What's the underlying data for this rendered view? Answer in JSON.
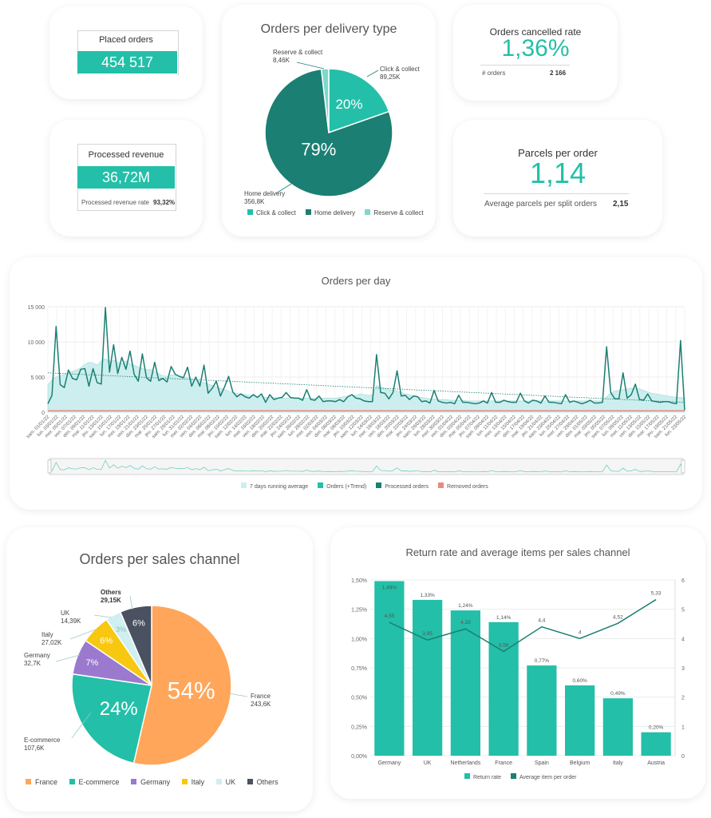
{
  "kpi_placed": {
    "label": "Placed orders",
    "value": "454 517"
  },
  "kpi_revenue": {
    "label": "Processed revenue",
    "value": "36,72M",
    "rate_label": "Processed revenue rate",
    "rate_value": "93,32%"
  },
  "kpi_cancel": {
    "label": "Orders cancelled rate",
    "value": "1,36%",
    "sub_label": "# orders",
    "sub_value": "2 166"
  },
  "kpi_parcels": {
    "label": "Parcels per order",
    "value": "1,14",
    "sub_label": "Average parcels per split orders",
    "sub_value": "2,15"
  },
  "colors": {
    "teal": "#23bfa8",
    "dark_teal": "#1b7f73",
    "light_teal": "#cdeeee",
    "orange": "#ffa65a",
    "purple": "#9a79cf",
    "yellow": "#f7c80f",
    "light_blue": "#cfeff0",
    "slate": "#4a5161",
    "red": "#e88a80"
  },
  "chart_data": [
    {
      "id": "delivery",
      "type": "pie",
      "title": "Orders per delivery type",
      "slices": [
        {
          "label": "Click & collect",
          "value": 89.25,
          "display": "89,25K",
          "pct": "20%",
          "color": "#23bfa8"
        },
        {
          "label": "Home delivery",
          "value": 356.8,
          "display": "356,8K",
          "pct": "79%",
          "color": "#1b7f73"
        },
        {
          "label": "Reserve & collect",
          "value": 8.46,
          "display": "8,46K",
          "pct": "",
          "color": "#7dd8cd"
        }
      ],
      "legend": [
        "Click & collect",
        "Home delivery",
        "Reserve & collect"
      ],
      "legend_position": "bottom"
    },
    {
      "id": "orders_day",
      "type": "line",
      "title": "Orders per day",
      "y_ticks": [
        "15 000",
        "10 000",
        "5 000",
        "0"
      ],
      "ylim": [
        0,
        15000
      ],
      "x_labels": [
        "sam. 01/01/22",
        "lun. 03/01/22",
        "mer. 05/01/22",
        "ven. 07/01/22",
        "dim. 09/01/22",
        "mar. 11/01/22",
        "jeu. 13/01/22",
        "sam. 15/01/22",
        "lun. 17/01/22",
        "mer. 19/01/22",
        "ven. 21/01/22",
        "dim. 23/01/22",
        "mar. 25/01/22",
        "jeu. 27/01/22",
        "sam. 29/01/22",
        "lun. 31/01/22",
        "mer. 02/02/22",
        "ven. 04/02/22",
        "dim. 06/02/22",
        "mar. 08/02/22",
        "jeu. 10/02/22",
        "sam. 12/02/22",
        "lun. 14/02/22",
        "mer. 16/02/22",
        "ven. 18/02/22",
        "dim. 20/02/22",
        "mar. 22/02/22",
        "jeu. 24/02/22",
        "sam. 26/02/22",
        "lun. 28/02/22",
        "mer. 02/03/22",
        "ven. 04/03/22",
        "dim. 06/03/22",
        "mar. 08/03/22",
        "jeu. 10/03/22",
        "sam. 12/03/22",
        "lun. 14/03/22",
        "mer. 16/03/22",
        "ven. 18/03/22",
        "dim. 20/03/22",
        "mar. 22/03/22",
        "jeu. 24/03/22",
        "sam. 26/03/22",
        "lun. 28/03/22",
        "mer. 30/03/22",
        "ven. 01/04/22",
        "dim. 03/04/22",
        "mar. 05/04/22",
        "jeu. 07/04/22",
        "sam. 09/04/22",
        "lun. 11/04/22",
        "mer. 13/04/22",
        "ven. 15/04/22",
        "dim. 17/04/22",
        "mar. 19/04/22",
        "jeu. 21/04/22",
        "sam. 23/04/22",
        "lun. 25/04/22",
        "mer. 27/04/22",
        "ven. 29/04/22",
        "dim. 01/05/22",
        "mar. 03/05/22",
        "jeu. 05/05/22",
        "sam. 07/05/22",
        "lun. 09/05/22",
        "mer. 11/05/22",
        "ven. 13/05/22",
        "dim. 15/05/22",
        "mar. 17/05/22",
        "jeu. 19/05/22",
        "sam. 21/05/22",
        "lun. 23/05/22"
      ],
      "series": [
        {
          "name": "Processed orders",
          "values": [
            1200,
            2400,
            12200,
            3900,
            3500,
            6000,
            4800,
            4600,
            6100,
            6200,
            3700,
            6200,
            4200,
            4000,
            14900,
            5700,
            9600,
            5500,
            7800,
            6100,
            8700,
            5400,
            4400,
            8300,
            4900,
            4400,
            7100,
            4500,
            4800,
            4300,
            6500,
            5400,
            5100,
            4900,
            6400,
            3700,
            5000,
            3700,
            6700,
            2700,
            3400,
            4400,
            2300,
            3600,
            5100,
            2900,
            2200,
            2600,
            2200,
            2000,
            2500,
            2100,
            2600,
            1400,
            2500,
            1800,
            2000,
            2100,
            2800,
            2100,
            2000,
            2000,
            1700,
            3200,
            1800,
            1700,
            2300,
            1500,
            1600,
            1600,
            1500,
            1800,
            1500,
            2200,
            2500,
            2000,
            1900,
            1600,
            1500,
            1500,
            8200,
            2800,
            2700,
            1900,
            2800,
            5900,
            2300,
            2400,
            1800,
            2300,
            2200,
            1500,
            1600,
            1300,
            3100,
            1600,
            1400,
            1300,
            1400,
            1200,
            2400,
            1400,
            1400,
            1300,
            1200,
            1300,
            1600,
            1300,
            2800,
            1400,
            1400,
            1700,
            1500,
            1400,
            1400,
            2700,
            1600,
            1300,
            1700,
            1600,
            1300,
            2300,
            1400,
            1400,
            1300,
            1200,
            2500,
            1400,
            1600,
            1400,
            1200,
            1400,
            1700,
            1300,
            1300,
            1400,
            9300,
            2800,
            1900,
            1900,
            5600,
            2000,
            2500,
            4000,
            1800,
            1700,
            2600,
            1600,
            1500,
            1400,
            1500,
            1500,
            1300,
            1200,
            10200,
            300
          ]
        },
        {
          "name": "7 days running average",
          "values": [
            3900,
            4600,
            5000,
            5200,
            5400,
            5600,
            5800,
            6000,
            6300,
            6800,
            7100,
            7000,
            6700,
            7300,
            7600,
            7200,
            7400,
            7100,
            6800,
            7300,
            6900,
            6700,
            6400,
            6200,
            6000,
            6100,
            5700,
            5500,
            5200,
            5100,
            5300,
            5300,
            5100,
            5000,
            4900,
            4800,
            4600,
            4400,
            4200,
            4000,
            3800,
            3600,
            3400,
            3200,
            3000,
            2800,
            2700,
            2600,
            2500,
            2400,
            2300,
            2200,
            2200,
            2100,
            2100,
            2100,
            2000,
            2000,
            2000,
            2000,
            2000,
            2000,
            2000,
            2000,
            2000,
            2000,
            2000,
            2000,
            2000,
            2000,
            2000,
            2100,
            2200,
            2200,
            2300,
            2400,
            2600,
            2500,
            2400,
            2500,
            3800,
            3600,
            3400,
            3200,
            3100,
            3000,
            2800,
            2600,
            2500,
            2300,
            2200,
            2100,
            2000,
            1900,
            1900,
            1800,
            1800,
            1800,
            1700,
            1700,
            1700,
            1700,
            1600,
            1600,
            1600,
            1600,
            1600,
            1600,
            1600,
            1600,
            1600,
            1600,
            1600,
            1600,
            1600,
            1600,
            1600,
            1600,
            1600,
            1600,
            1600,
            1600,
            1600,
            1600,
            1600,
            1600,
            1600,
            1600,
            1600,
            1600,
            1600,
            1600,
            1600,
            1600,
            1600,
            1600,
            2200,
            2700,
            3000,
            3100,
            3200,
            3300,
            3400,
            3400,
            3300,
            3100,
            2900,
            2700,
            2600,
            2500,
            2400,
            2300,
            2200,
            2100,
            2100,
            2000
          ]
        },
        {
          "name": "Orders (+Trend)",
          "values": [
            5600,
            1400
          ]
        },
        {
          "name": "Removed orders",
          "values": [
            200,
            200
          ]
        }
      ],
      "legend": [
        "7 days running average",
        "Orders (+Trend)",
        "Processed orders",
        "Removed orders"
      ],
      "legend_position": "bottom"
    },
    {
      "id": "sales_channel",
      "type": "pie",
      "title": "Orders per sales  channel",
      "slices": [
        {
          "label": "France",
          "value": 243.6,
          "display": "243,6K",
          "pct": "54%",
          "color": "#ffa65a"
        },
        {
          "label": "E-commerce",
          "value": 107.6,
          "display": "107,6K",
          "pct": "24%",
          "color": "#23bfa8"
        },
        {
          "label": "Germany",
          "value": 32.7,
          "display": "32,7K",
          "pct": "7%",
          "color": "#9a79cf"
        },
        {
          "label": "Italy",
          "value": 27.02,
          "display": "27,02K",
          "pct": "6%",
          "color": "#f7c80f"
        },
        {
          "label": "UK",
          "value": 14.39,
          "display": "14,39K",
          "pct": "3%",
          "color": "#cfeff0"
        },
        {
          "label": "Others",
          "value": 29.15,
          "display": "29,15K",
          "pct": "6%",
          "color": "#4a5161"
        }
      ],
      "legend": [
        "France",
        "E-commerce",
        "Germany",
        "Italy",
        "UK",
        "Others"
      ],
      "legend_position": "bottom"
    },
    {
      "id": "return_rate",
      "type": "bar",
      "title": "Return rate and average items per sales channel",
      "categories": [
        "Germany",
        "UK",
        "Netherlands",
        "France",
        "Spain",
        "Belgium",
        "Italy",
        "Austria"
      ],
      "series": [
        {
          "name": "Return rate",
          "values": [
            1.49,
            1.33,
            1.24,
            1.14,
            0.77,
            0.6,
            0.49,
            0.2
          ],
          "labels": [
            "1,49%",
            "1,33%",
            "1,24%",
            "1,14%",
            "0,77%",
            "0,60%",
            "0,49%",
            "0,20%"
          ]
        },
        {
          "name": "Average item per order",
          "values": [
            4.55,
            3.95,
            4.33,
            3.56,
            4.4,
            4,
            4.52,
            5.33
          ],
          "labels": [
            "4,55",
            "3,95",
            "4,33",
            "3,56",
            "4,4",
            "4",
            "4,52",
            "5,33"
          ]
        }
      ],
      "y_left_ticks": [
        "1,50%",
        "1,25%",
        "1,00%",
        "0,75%",
        "0,50%",
        "0,25%",
        "0,00%"
      ],
      "y_left_lim": [
        0,
        1.5
      ],
      "y_right_ticks": [
        "6",
        "5",
        "4",
        "3",
        "2",
        "1",
        "0"
      ],
      "y_right_lim": [
        0,
        6
      ],
      "legend": [
        "Return rate",
        "Average item per order"
      ],
      "legend_position": "bottom"
    }
  ]
}
